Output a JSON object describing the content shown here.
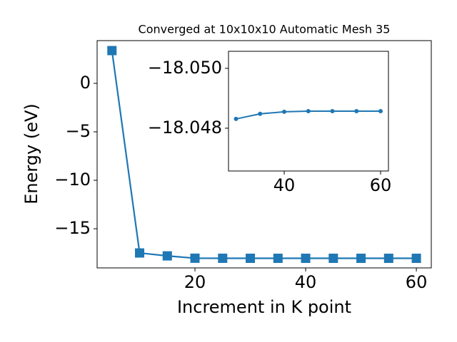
{
  "chart_data": [
    {
      "type": "line",
      "title": "Converged at 10x10x10 Automatic Mesh 35",
      "xlabel": "Increment in K point",
      "ylabel": "Energy (eV)",
      "x": [
        5,
        10,
        15,
        20,
        25,
        30,
        35,
        40,
        45,
        50,
        55,
        60
      ],
      "series": [
        {
          "color": "#1f77b4",
          "marker": "square",
          "values": [
            3.38,
            -17.5,
            -17.8,
            -18.04,
            -18.045,
            -18.0483,
            -18.0485,
            -18.04855,
            -18.04857,
            -18.04857,
            -18.04857,
            -18.04857
          ]
        }
      ],
      "xlim": [
        2.32,
        62.7
      ],
      "xticks": [
        20,
        40,
        60
      ],
      "ylim": [
        -19.04,
        4.41
      ],
      "yticks": [
        {
          "value": -15,
          "label": "−15"
        },
        {
          "value": -10,
          "label": "−10"
        },
        {
          "value": -5,
          "label": "−5"
        },
        0
      ]
    },
    {
      "type": "line",
      "x": [
        30,
        35,
        40,
        45,
        50,
        55,
        60
      ],
      "series": [
        {
          "color": "#1f77b4",
          "marker": "circle",
          "values": [
            -18.04831,
            -18.04848,
            -18.04855,
            -18.04857,
            -18.04857,
            -18.04857,
            -18.04857
          ]
        }
      ],
      "xlim": [
        28.44,
        61.63
      ],
      "xticks": [
        40,
        60
      ],
      "ylim": [
        -18.04657,
        -18.05057
      ],
      "yticks": [
        {
          "value": -18.048,
          "label": "−18.048"
        },
        {
          "value": -18.05,
          "label": "−18.050"
        }
      ]
    }
  ]
}
